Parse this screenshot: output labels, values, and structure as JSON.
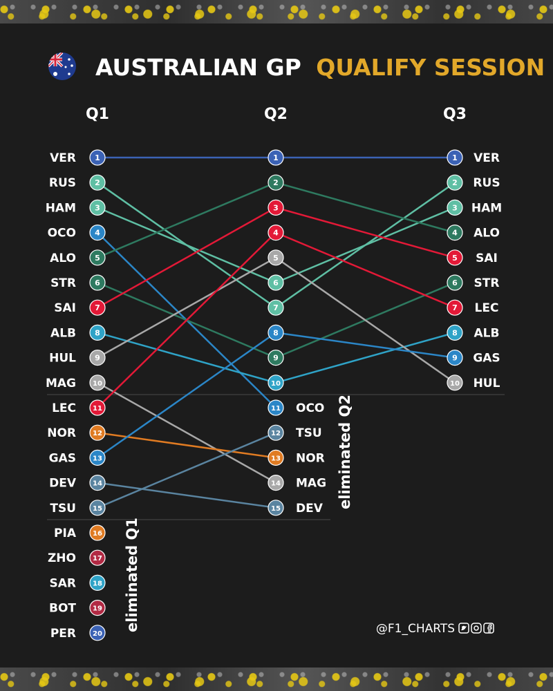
{
  "header": {
    "title_white": "AUSTRALIAN GP",
    "title_yellow": "QUALIFY SESSION",
    "flag_icon": "australia-flag-icon"
  },
  "colors": {
    "background": "#1c1c1c",
    "title_white": "#ffffff",
    "title_yellow": "#e2a82a"
  },
  "footer": {
    "credit": "@F1_CHARTS",
    "social_icons": [
      "twitter-icon",
      "instagram-icon",
      "facebook-icon"
    ]
  },
  "chart_data": {
    "type": "bump",
    "title": "AUSTRALIAN GP QUALIFY SESSION",
    "stages": [
      "Q1",
      "Q2",
      "Q3"
    ],
    "eliminated_labels": [
      "eliminated Q1",
      "eliminated Q2"
    ],
    "drivers": [
      {
        "code": "VER",
        "color": "#3b62b5",
        "positions": [
          1,
          1,
          1
        ]
      },
      {
        "code": "RUS",
        "color": "#5fbfa4",
        "positions": [
          2,
          7,
          2
        ]
      },
      {
        "code": "HAM",
        "color": "#5fbfa4",
        "positions": [
          3,
          6,
          3
        ]
      },
      {
        "code": "OCO",
        "color": "#2b86c7",
        "positions": [
          4,
          11,
          null
        ]
      },
      {
        "code": "ALO",
        "color": "#2e7a60",
        "positions": [
          5,
          2,
          4
        ]
      },
      {
        "code": "STR",
        "color": "#2e7a60",
        "positions": [
          6,
          9,
          6
        ]
      },
      {
        "code": "SAI",
        "color": "#e31937",
        "positions": [
          7,
          3,
          5
        ]
      },
      {
        "code": "ALB",
        "color": "#2fa3c7",
        "positions": [
          8,
          10,
          8
        ]
      },
      {
        "code": "HUL",
        "color": "#a8a8a8",
        "positions": [
          9,
          5,
          10
        ]
      },
      {
        "code": "MAG",
        "color": "#a8a8a8",
        "positions": [
          10,
          14,
          null
        ]
      },
      {
        "code": "LEC",
        "color": "#e31937",
        "positions": [
          11,
          4,
          7
        ]
      },
      {
        "code": "NOR",
        "color": "#e07b22",
        "positions": [
          12,
          13,
          null
        ]
      },
      {
        "code": "GAS",
        "color": "#2b86c7",
        "positions": [
          13,
          8,
          9
        ]
      },
      {
        "code": "DEV",
        "color": "#5a84a0",
        "positions": [
          14,
          15,
          null
        ]
      },
      {
        "code": "TSU",
        "color": "#5a84a0",
        "positions": [
          15,
          12,
          null
        ]
      },
      {
        "code": "PIA",
        "color": "#e07b22",
        "positions": [
          16,
          null,
          null
        ]
      },
      {
        "code": "ZHO",
        "color": "#b22a44",
        "positions": [
          17,
          null,
          null
        ]
      },
      {
        "code": "SAR",
        "color": "#2fa3c7",
        "positions": [
          18,
          null,
          null
        ]
      },
      {
        "code": "BOT",
        "color": "#b22a44",
        "positions": [
          19,
          null,
          null
        ]
      },
      {
        "code": "PER",
        "color": "#3b62b5",
        "positions": [
          20,
          null,
          null
        ]
      }
    ]
  }
}
